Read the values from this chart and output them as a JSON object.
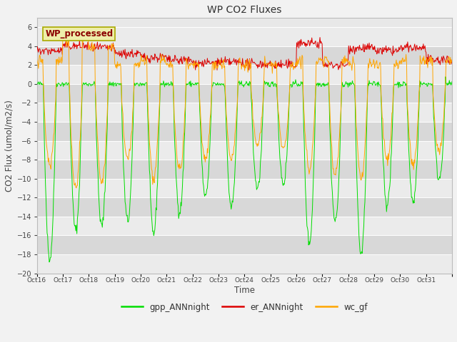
{
  "title": "WP CO2 Fluxes",
  "ylabel": "CO2 Flux (umol/m2/s)",
  "xlabel": "Time",
  "ylim": [
    -20,
    7
  ],
  "yticks": [
    -20,
    -18,
    -16,
    -14,
    -12,
    -10,
    -8,
    -6,
    -4,
    -2,
    0,
    2,
    4,
    6
  ],
  "xtick_labels": [
    "Oct 16",
    "Oct 17",
    "Oct 18",
    "Oct 19",
    "Oct 20",
    "Oct 21",
    "Oct 22",
    "Oct 23",
    "Oct 24",
    "Oct 25",
    "Oct 26",
    "Oct 27",
    "Oct 28",
    "Oct 29",
    "Oct 30",
    "Oct 31"
  ],
  "inset_label": "WP_processed",
  "inset_label_color": "#8B0000",
  "inset_box_facecolor": "#EEEEAA",
  "inset_box_edgecolor": "#AAAA00",
  "legend_entries": [
    "gpp_ANNnight",
    "er_ANNnight",
    "wc_gf"
  ],
  "line_colors": {
    "gpp_ANNnight": "#00DD00",
    "er_ANNnight": "#DD0000",
    "wc_gf": "#FFA500"
  },
  "fig_facecolor": "#f2f2f2",
  "plot_facecolor": "#e8e8e8",
  "band_color_light": "#ebebeb",
  "band_color_dark": "#d8d8d8",
  "grid_color": "#ffffff",
  "n_days": 16,
  "seed": 42
}
